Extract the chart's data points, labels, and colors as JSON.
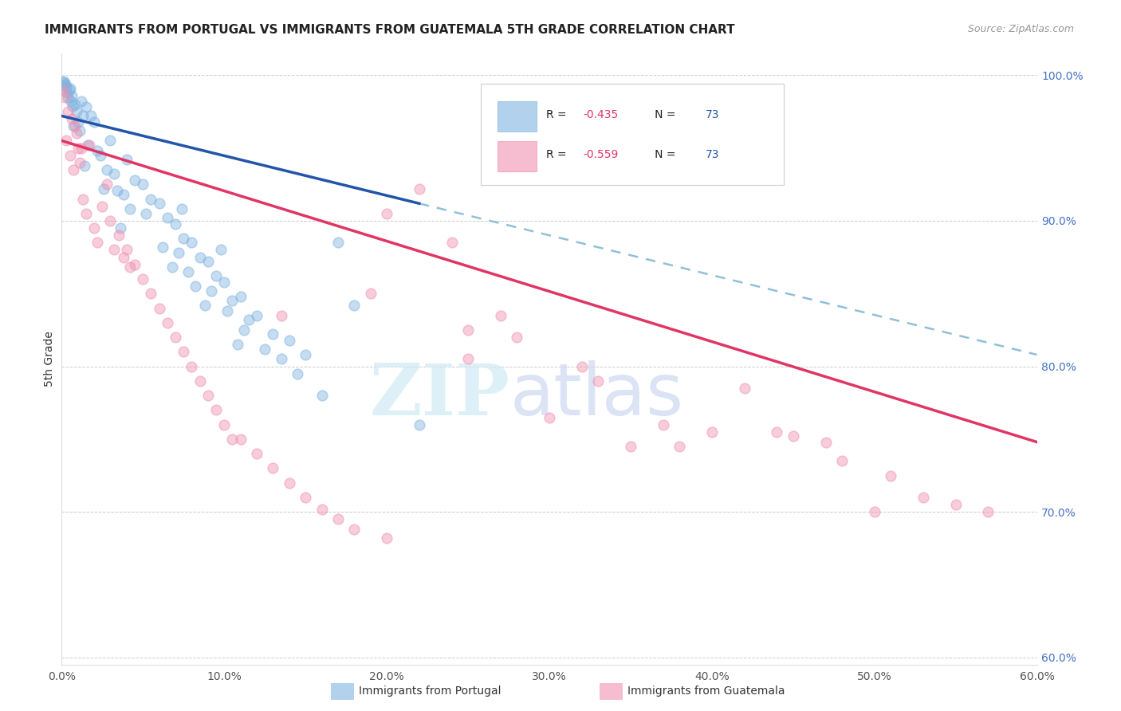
{
  "title": "IMMIGRANTS FROM PORTUGAL VS IMMIGRANTS FROM GUATEMALA 5TH GRADE CORRELATION CHART",
  "source": "Source: ZipAtlas.com",
  "ylabel": "5th Grade",
  "x_min": 0.0,
  "x_max": 60.0,
  "y_min": 59.5,
  "y_max": 101.5,
  "x_ticks": [
    0.0,
    10.0,
    20.0,
    30.0,
    40.0,
    50.0,
    60.0
  ],
  "y_ticks": [
    60.0,
    70.0,
    80.0,
    90.0,
    100.0
  ],
  "portugal_scatter_color": "#7fb3e0",
  "guatemala_scatter_color": "#f090b0",
  "portugal_line_color": "#2255aa",
  "guatemala_line_color": "#e03565",
  "dashed_line_color": "#90c0d8",
  "watermark_zip_color": "#cce8f5",
  "watermark_atlas_color": "#c8d4f0",
  "portugal_line_x0": 0.0,
  "portugal_line_y0": 97.2,
  "portugal_line_x1": 60.0,
  "portugal_line_y1": 80.8,
  "portugal_solid_end": 22.0,
  "guatemala_line_x0": 0.0,
  "guatemala_line_y0": 95.5,
  "guatemala_line_x1": 60.0,
  "guatemala_line_y1": 74.8,
  "portugal_points_x": [
    0.1,
    0.15,
    0.2,
    0.25,
    0.3,
    0.35,
    0.4,
    0.45,
    0.5,
    0.55,
    0.6,
    0.65,
    0.7,
    0.8,
    0.9,
    1.0,
    1.1,
    1.2,
    1.3,
    1.4,
    1.5,
    1.6,
    1.8,
    2.0,
    2.2,
    2.4,
    2.6,
    2.8,
    3.0,
    3.2,
    3.4,
    3.6,
    3.8,
    4.0,
    4.2,
    4.5,
    5.0,
    5.2,
    5.5,
    6.0,
    6.2,
    6.5,
    6.8,
    7.0,
    7.2,
    7.4,
    7.5,
    7.8,
    8.0,
    8.2,
    8.5,
    8.8,
    9.0,
    9.2,
    9.5,
    9.8,
    10.0,
    10.2,
    10.5,
    10.8,
    11.0,
    11.2,
    11.5,
    12.0,
    12.5,
    13.0,
    13.5,
    14.0,
    14.5,
    15.0,
    16.0,
    17.0,
    18.0,
    22.0
  ],
  "portugal_points_y": [
    99.5,
    99.6,
    99.3,
    99.4,
    99.2,
    98.8,
    98.5,
    99.0,
    99.1,
    98.2,
    98.6,
    97.9,
    96.5,
    98.0,
    97.5,
    96.8,
    96.2,
    98.2,
    97.2,
    93.8,
    97.8,
    95.2,
    97.2,
    96.8,
    94.8,
    94.5,
    92.2,
    93.5,
    95.5,
    93.2,
    92.1,
    89.5,
    91.8,
    94.2,
    90.8,
    92.8,
    92.5,
    90.5,
    91.5,
    91.2,
    88.2,
    90.2,
    86.8,
    89.8,
    87.8,
    90.8,
    88.8,
    86.5,
    88.5,
    85.5,
    87.5,
    84.2,
    87.2,
    85.2,
    86.2,
    88.0,
    85.8,
    83.8,
    84.5,
    81.5,
    84.8,
    82.5,
    83.2,
    83.5,
    81.2,
    82.2,
    80.5,
    81.8,
    79.5,
    80.8,
    78.0,
    88.5,
    84.2,
    76.0
  ],
  "guatemala_points_x": [
    0.1,
    0.2,
    0.3,
    0.4,
    0.5,
    0.6,
    0.7,
    0.8,
    0.9,
    1.0,
    1.1,
    1.2,
    1.3,
    1.5,
    1.7,
    2.0,
    2.2,
    2.5,
    2.8,
    3.0,
    3.2,
    3.5,
    3.8,
    4.0,
    4.2,
    4.5,
    5.0,
    5.5,
    6.0,
    6.5,
    7.0,
    7.5,
    8.0,
    8.5,
    9.0,
    9.5,
    10.0,
    10.5,
    11.0,
    12.0,
    13.0,
    14.0,
    15.0,
    16.0,
    17.0,
    18.0,
    19.0,
    20.0,
    22.0,
    24.0,
    25.0,
    27.0,
    28.0,
    30.0,
    32.0,
    33.0,
    35.0,
    37.0,
    38.0,
    40.0,
    42.0,
    44.0,
    45.0,
    47.0,
    48.0,
    50.0,
    51.0,
    53.0,
    55.0,
    57.0,
    25.0,
    20.0,
    13.5
  ],
  "guatemala_points_y": [
    99.0,
    98.5,
    95.5,
    97.5,
    94.5,
    97.0,
    93.5,
    96.5,
    96.0,
    95.0,
    94.0,
    95.0,
    91.5,
    90.5,
    95.2,
    89.5,
    88.5,
    91.0,
    92.5,
    90.0,
    88.0,
    89.0,
    87.5,
    88.0,
    86.8,
    87.0,
    86.0,
    85.0,
    84.0,
    83.0,
    82.0,
    81.0,
    80.0,
    79.0,
    78.0,
    77.0,
    76.0,
    75.0,
    75.0,
    74.0,
    73.0,
    72.0,
    71.0,
    70.2,
    69.5,
    68.8,
    85.0,
    90.5,
    92.2,
    88.5,
    80.5,
    83.5,
    82.0,
    76.5,
    80.0,
    79.0,
    74.5,
    76.0,
    74.5,
    75.5,
    78.5,
    75.5,
    75.2,
    74.8,
    73.5,
    70.0,
    72.5,
    71.0,
    70.5,
    70.0,
    82.5,
    68.2,
    83.5
  ]
}
